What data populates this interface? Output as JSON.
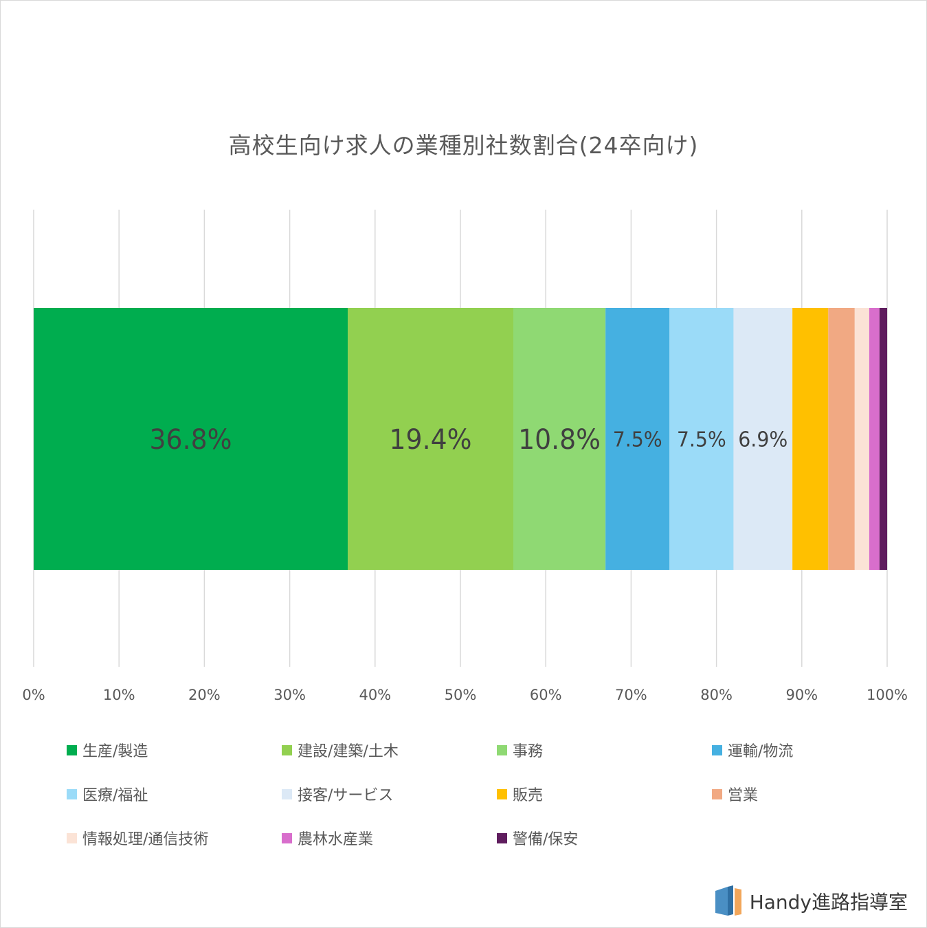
{
  "chart_data": {
    "type": "bar",
    "orientation": "horizontal",
    "stacked": "100%",
    "title": "高校生向け求人の業種別社数割合(24卒向け)",
    "xlim": [
      0,
      100
    ],
    "x_ticks": [
      "0%",
      "10%",
      "20%",
      "30%",
      "40%",
      "50%",
      "60%",
      "70%",
      "80%",
      "90%",
      "100%"
    ],
    "grid": "vertical",
    "legend_position": "bottom",
    "series": [
      {
        "name": "生産/製造",
        "value": 36.8,
        "label": "36.8%",
        "color": "#00ad4f"
      },
      {
        "name": "建設/建築/土木",
        "value": 19.4,
        "label": "19.4%",
        "color": "#92d050"
      },
      {
        "name": "事務",
        "value": 10.8,
        "label": "10.8%",
        "color": "#8fd973"
      },
      {
        "name": "運輸/物流",
        "value": 7.5,
        "label": "7.5%",
        "color": "#45b0e1"
      },
      {
        "name": "医療/福祉",
        "value": 7.5,
        "label": "7.5%",
        "color": "#9bdbf8"
      },
      {
        "name": "接客/サービス",
        "value": 6.9,
        "label": "6.9%",
        "color": "#dce9f6"
      },
      {
        "name": "販売",
        "value": 4.2,
        "label": "",
        "color": "#ffc000"
      },
      {
        "name": "営業",
        "value": 3.1,
        "label": "",
        "color": "#f1a983"
      },
      {
        "name": "情報処理/通信技術",
        "value": 1.7,
        "label": "",
        "color": "#fbe3d6"
      },
      {
        "name": "農林水産業",
        "value": 1.2,
        "label": "",
        "color": "#d86ecc"
      },
      {
        "name": "警備/保安",
        "value": 0.9,
        "label": "",
        "color": "#5f1d5e"
      }
    ]
  },
  "logo": {
    "text": "Handy進路指導室"
  }
}
